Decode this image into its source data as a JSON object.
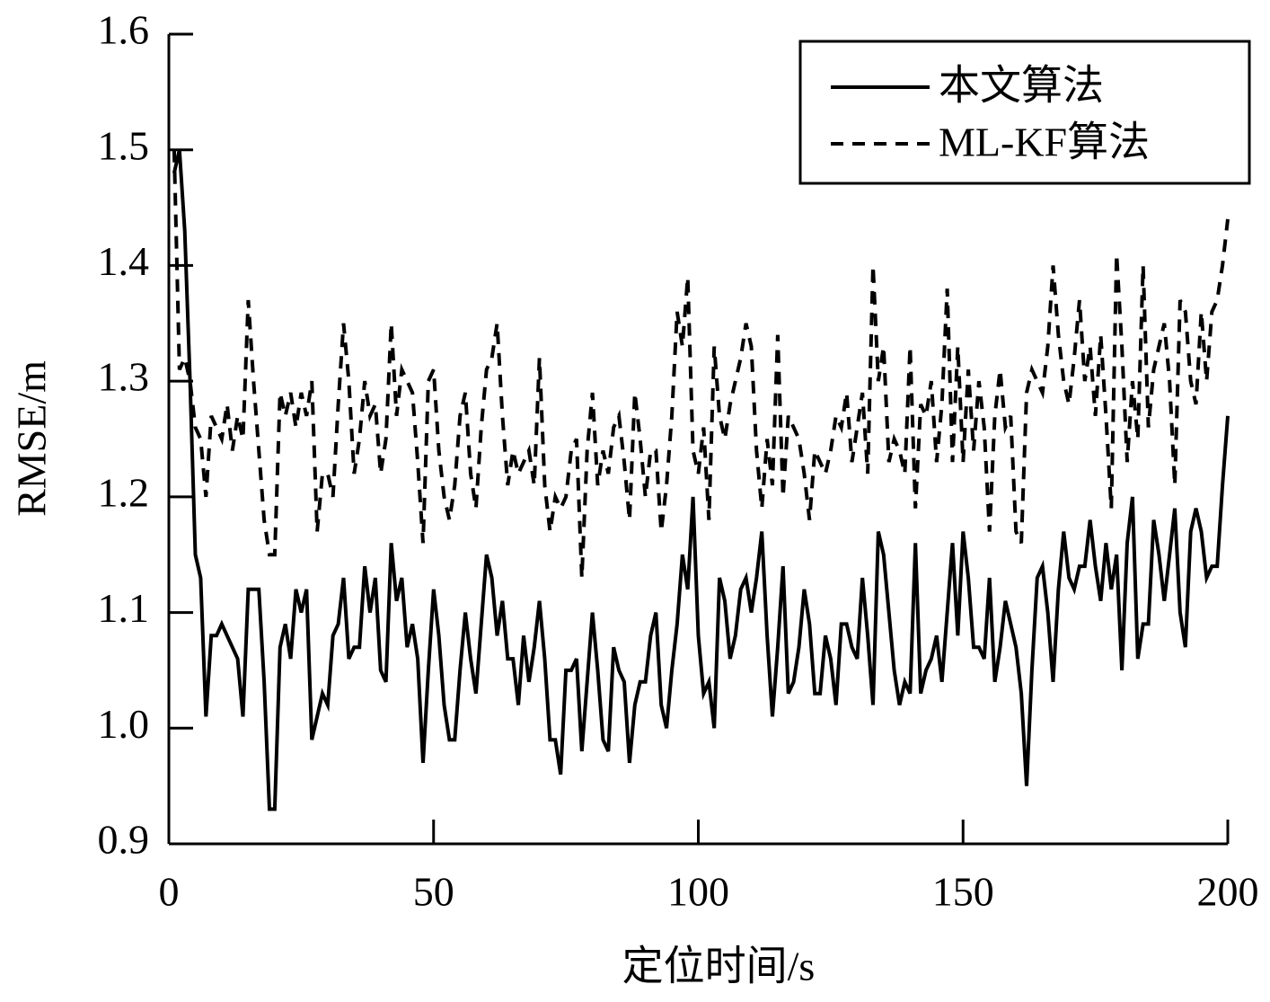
{
  "chart_data": {
    "type": "line",
    "xlabel": "定位时间/s",
    "ylabel": "RMSE/m",
    "xlim": [
      0,
      200
    ],
    "xticks": [
      0,
      50,
      100,
      150,
      200
    ],
    "ylim": [
      0.9,
      1.6
    ],
    "yticks": [
      {
        "value": 0.9,
        "label": "0.9"
      },
      {
        "value": 1.0,
        "label": "1.0"
      },
      1.1,
      1.2,
      1.3,
      1.4,
      1.5,
      1.6
    ],
    "legend": "upper right",
    "grid": false,
    "x": [
      1,
      2,
      3,
      4,
      5,
      6,
      7,
      8,
      9,
      10,
      11,
      12,
      13,
      14,
      15,
      16,
      17,
      18,
      19,
      20,
      21,
      22,
      23,
      24,
      25,
      26,
      27,
      28,
      29,
      30,
      31,
      32,
      33,
      34,
      35,
      36,
      37,
      38,
      39,
      40,
      41,
      42,
      43,
      44,
      45,
      46,
      47,
      48,
      49,
      50,
      51,
      52,
      53,
      54,
      55,
      56,
      57,
      58,
      59,
      60,
      61,
      62,
      63,
      64,
      65,
      66,
      67,
      68,
      69,
      70,
      71,
      72,
      73,
      74,
      75,
      76,
      77,
      78,
      79,
      80,
      81,
      82,
      83,
      84,
      85,
      86,
      87,
      88,
      89,
      90,
      91,
      92,
      93,
      94,
      95,
      96,
      97,
      98,
      99,
      100,
      101,
      102,
      103,
      104,
      105,
      106,
      107,
      108,
      109,
      110,
      111,
      112,
      113,
      114,
      115,
      116,
      117,
      118,
      119,
      120,
      121,
      122,
      123,
      124,
      125,
      126,
      127,
      128,
      129,
      130,
      131,
      132,
      133,
      134,
      135,
      136,
      137,
      138,
      139,
      140,
      141,
      142,
      143,
      144,
      145,
      146,
      147,
      148,
      149,
      150,
      151,
      152,
      153,
      154,
      155,
      156,
      157,
      158,
      159,
      160,
      161,
      162,
      163,
      164,
      165,
      166,
      167,
      168,
      169,
      170,
      171,
      172,
      173,
      174,
      175,
      176,
      177,
      178,
      179,
      180,
      181,
      182,
      183,
      184,
      185,
      186,
      187,
      188,
      189,
      190,
      191,
      192,
      193,
      194,
      195,
      196,
      197,
      198,
      199,
      200
    ],
    "series": [
      {
        "name": "本文算法",
        "color": "#000000",
        "dash": "solid",
        "values": [
          1.48,
          1.5,
          1.43,
          1.3,
          1.15,
          1.13,
          1.01,
          1.08,
          1.08,
          1.09,
          1.08,
          1.07,
          1.06,
          1.01,
          1.12,
          1.12,
          1.12,
          1.04,
          0.93,
          0.93,
          1.07,
          1.09,
          1.06,
          1.12,
          1.1,
          1.12,
          0.99,
          1.01,
          1.03,
          1.02,
          1.08,
          1.09,
          1.13,
          1.06,
          1.07,
          1.07,
          1.14,
          1.1,
          1.13,
          1.05,
          1.04,
          1.16,
          1.11,
          1.13,
          1.07,
          1.09,
          1.06,
          0.97,
          1.05,
          1.12,
          1.08,
          1.02,
          0.99,
          0.99,
          1.05,
          1.1,
          1.06,
          1.03,
          1.09,
          1.15,
          1.13,
          1.08,
          1.11,
          1.06,
          1.06,
          1.02,
          1.08,
          1.04,
          1.07,
          1.11,
          1.06,
          0.99,
          0.99,
          0.96,
          1.05,
          1.05,
          1.06,
          0.98,
          1.04,
          1.1,
          1.05,
          0.99,
          0.98,
          1.07,
          1.05,
          1.04,
          0.97,
          1.02,
          1.04,
          1.04,
          1.08,
          1.1,
          1.02,
          1.0,
          1.05,
          1.09,
          1.15,
          1.12,
          1.2,
          1.08,
          1.03,
          1.04,
          1.0,
          1.13,
          1.11,
          1.06,
          1.08,
          1.12,
          1.13,
          1.1,
          1.13,
          1.17,
          1.08,
          1.01,
          1.07,
          1.14,
          1.03,
          1.04,
          1.07,
          1.12,
          1.09,
          1.03,
          1.03,
          1.08,
          1.06,
          1.02,
          1.09,
          1.09,
          1.07,
          1.06,
          1.13,
          1.08,
          1.02,
          1.17,
          1.15,
          1.1,
          1.05,
          1.02,
          1.04,
          1.03,
          1.16,
          1.03,
          1.05,
          1.06,
          1.08,
          1.04,
          1.1,
          1.16,
          1.08,
          1.17,
          1.13,
          1.07,
          1.07,
          1.06,
          1.13,
          1.04,
          1.07,
          1.11,
          1.09,
          1.07,
          1.03,
          0.95,
          1.05,
          1.13,
          1.14,
          1.1,
          1.04,
          1.12,
          1.17,
          1.13,
          1.12,
          1.14,
          1.14,
          1.18,
          1.14,
          1.11,
          1.16,
          1.12,
          1.15,
          1.05,
          1.16,
          1.2,
          1.06,
          1.09,
          1.09,
          1.18,
          1.15,
          1.11,
          1.15,
          1.19,
          1.1,
          1.07,
          1.17,
          1.19,
          1.17,
          1.13,
          1.14,
          1.14,
          1.21,
          1.27
        ]
      },
      {
        "name": "ML-KF算法",
        "color": "#000000",
        "dash": "dashed",
        "values": [
          1.5,
          1.31,
          1.32,
          1.3,
          1.26,
          1.25,
          1.2,
          1.27,
          1.26,
          1.25,
          1.28,
          1.24,
          1.27,
          1.25,
          1.37,
          1.3,
          1.24,
          1.18,
          1.15,
          1.15,
          1.29,
          1.27,
          1.29,
          1.26,
          1.29,
          1.27,
          1.3,
          1.17,
          1.22,
          1.22,
          1.2,
          1.28,
          1.35,
          1.3,
          1.22,
          1.25,
          1.3,
          1.27,
          1.28,
          1.22,
          1.25,
          1.35,
          1.27,
          1.31,
          1.3,
          1.29,
          1.23,
          1.16,
          1.3,
          1.31,
          1.24,
          1.2,
          1.18,
          1.21,
          1.27,
          1.29,
          1.22,
          1.19,
          1.26,
          1.31,
          1.32,
          1.35,
          1.27,
          1.21,
          1.24,
          1.22,
          1.23,
          1.24,
          1.21,
          1.32,
          1.21,
          1.17,
          1.2,
          1.19,
          1.2,
          1.24,
          1.25,
          1.13,
          1.24,
          1.29,
          1.21,
          1.24,
          1.22,
          1.26,
          1.27,
          1.23,
          1.18,
          1.29,
          1.25,
          1.2,
          1.24,
          1.24,
          1.17,
          1.21,
          1.27,
          1.36,
          1.33,
          1.39,
          1.24,
          1.22,
          1.26,
          1.18,
          1.33,
          1.27,
          1.25,
          1.28,
          1.3,
          1.32,
          1.35,
          1.33,
          1.24,
          1.19,
          1.25,
          1.21,
          1.34,
          1.2,
          1.27,
          1.26,
          1.25,
          1.22,
          1.18,
          1.24,
          1.23,
          1.22,
          1.24,
          1.27,
          1.26,
          1.29,
          1.23,
          1.26,
          1.29,
          1.22,
          1.4,
          1.3,
          1.33,
          1.23,
          1.25,
          1.24,
          1.22,
          1.33,
          1.19,
          1.28,
          1.27,
          1.3,
          1.23,
          1.28,
          1.38,
          1.23,
          1.33,
          1.23,
          1.31,
          1.24,
          1.3,
          1.26,
          1.17,
          1.27,
          1.31,
          1.26,
          1.27,
          1.17,
          1.16,
          1.29,
          1.31,
          1.3,
          1.29,
          1.33,
          1.4,
          1.34,
          1.3,
          1.28,
          1.32,
          1.37,
          1.3,
          1.33,
          1.27,
          1.34,
          1.27,
          1.19,
          1.41,
          1.33,
          1.23,
          1.3,
          1.25,
          1.4,
          1.26,
          1.31,
          1.33,
          1.35,
          1.3,
          1.21,
          1.37,
          1.36,
          1.3,
          1.28,
          1.36,
          1.3,
          1.36,
          1.37,
          1.4,
          1.44
        ]
      }
    ]
  }
}
